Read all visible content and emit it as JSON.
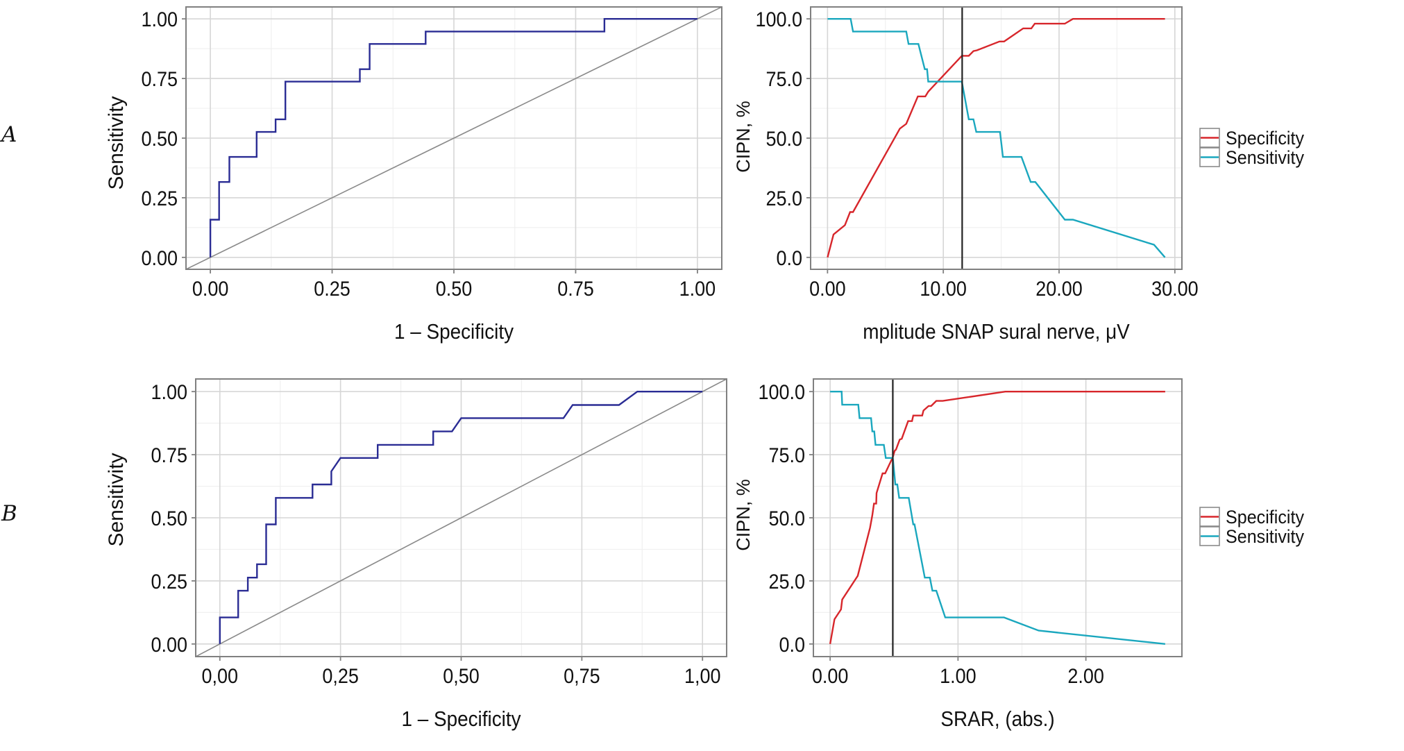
{
  "figure": {
    "panels": [
      {
        "label": "A"
      },
      {
        "label": "B"
      }
    ]
  },
  "colors": {
    "roc": "#2a2c94",
    "diagonal": "#8a8a8a",
    "specificity": "#d7262b",
    "sensitivity": "#1aa7be",
    "cutoff": "#222222",
    "grid_major": "#d6d6d6",
    "grid_minor": "#f0f0f0",
    "border": "#808080",
    "legend_box": "#8a8a8a"
  },
  "chart_data": [
    {
      "id": "A-roc",
      "panel": "A",
      "type": "line",
      "title": "",
      "xlabel": "1 – Specificity",
      "ylabel": "Sensitivity",
      "xlim": [
        -0.05,
        1.05
      ],
      "ylim": [
        -0.05,
        1.05
      ],
      "xticks": [
        0,
        0.25,
        0.5,
        0.75,
        1
      ],
      "xtick_labels": [
        "0.00",
        "0.25",
        "0.50",
        "0.75",
        "1.00"
      ],
      "yticks": [
        0,
        0.25,
        0.5,
        0.75,
        1
      ],
      "ytick_labels": [
        "0.00",
        "0.25",
        "0.50",
        "0.75",
        "1.00"
      ],
      "grid": true,
      "legend": [],
      "series": [
        {
          "name": "reference",
          "color_key": "diagonal",
          "x": [
            -0.05,
            1.05
          ],
          "y": [
            -0.05,
            1.05
          ]
        },
        {
          "name": "ROC",
          "color_key": "roc",
          "x": [
            0,
            0,
            0.018,
            0.018,
            0.039,
            0.039,
            0.095,
            0.095,
            0.134,
            0.134,
            0.154,
            0.154,
            0.307,
            0.307,
            0.327,
            0.327,
            0.442,
            0.442,
            0.809,
            0.809,
            1
          ],
          "y": [
            0,
            0.158,
            0.158,
            0.316,
            0.316,
            0.421,
            0.421,
            0.526,
            0.526,
            0.579,
            0.579,
            0.737,
            0.737,
            0.789,
            0.789,
            0.895,
            0.895,
            0.947,
            0.947,
            1,
            1
          ]
        }
      ]
    },
    {
      "id": "A-cut",
      "panel": "A",
      "type": "line",
      "title": "",
      "xlabel": "mplitude SNAP sural nerve, μV",
      "ylabel": "CIPN, %",
      "xlim": [
        -1.46,
        30.61
      ],
      "ylim": [
        -5,
        105
      ],
      "xticks": [
        0,
        10,
        20,
        30
      ],
      "xtick_labels": [
        "0.00",
        "10.00",
        "20.00",
        "30.00"
      ],
      "yticks": [
        0,
        25,
        50,
        75,
        100
      ],
      "ytick_labels": [
        "0.0",
        "25.0",
        "50.0",
        "75.0",
        "100.0"
      ],
      "grid": true,
      "legend": [
        "Specificity",
        "Sensitivity"
      ],
      "legend_position": "right",
      "cutoff": 11.63,
      "series": [
        {
          "name": "Specificity",
          "color_key": "specificity",
          "x": [
            0,
            0.52,
            1.5,
            1.95,
            2.2,
            6.25,
            6.8,
            7.8,
            8.45,
            8.7,
            11.6,
            12.2,
            12.6,
            12.9,
            14.85,
            15.25,
            16.9,
            17.6,
            17.9,
            20.5,
            21.2,
            29.15
          ],
          "y": [
            0,
            9.6,
            13.5,
            19,
            19,
            54,
            56,
            67.5,
            67.5,
            69.5,
            84.5,
            84.5,
            86.5,
            86.8,
            90.5,
            90.5,
            96,
            96,
            98,
            98,
            100,
            100
          ]
        },
        {
          "name": "Sensitivity",
          "color_key": "sensitivity",
          "x": [
            0,
            2,
            2.2,
            6.8,
            7.0,
            7.85,
            8.4,
            8.6,
            8.7,
            11.6,
            12.2,
            12.6,
            12.85,
            14.9,
            15.15,
            16.75,
            17.55,
            17.95,
            20.5,
            21.2,
            28.2,
            29.15
          ],
          "y": [
            100,
            100,
            94.7,
            94.7,
            89.5,
            89.5,
            78.9,
            78.9,
            73.7,
            73.7,
            57.9,
            57.9,
            52.6,
            52.6,
            42.1,
            42.1,
            31.6,
            31.6,
            15.8,
            15.8,
            5.3,
            0
          ]
        }
      ]
    },
    {
      "id": "B-roc",
      "panel": "B",
      "type": "line",
      "title": "",
      "xlabel": "1 – Specificity",
      "ylabel": "Sensitivity",
      "xlim": [
        -0.05,
        1.05
      ],
      "ylim": [
        -0.05,
        1.05
      ],
      "xticks": [
        0,
        0.25,
        0.5,
        0.75,
        1
      ],
      "xtick_labels": [
        "0,00",
        "0,25",
        "0,50",
        "0,75",
        "1,00"
      ],
      "yticks": [
        0,
        0.25,
        0.5,
        0.75,
        1
      ],
      "ytick_labels": [
        "0.00",
        "0.25",
        "0.50",
        "0.75",
        "1.00"
      ],
      "grid": true,
      "legend": [],
      "series": [
        {
          "name": "reference",
          "color_key": "diagonal",
          "x": [
            -0.05,
            1.05
          ],
          "y": [
            -0.05,
            1.05
          ]
        },
        {
          "name": "ROC",
          "color_key": "roc",
          "x": [
            0,
            0,
            0.038,
            0.038,
            0.058,
            0.058,
            0.077,
            0.077,
            0.096,
            0.096,
            0.116,
            0.116,
            0.192,
            0.192,
            0.231,
            0.231,
            0.25,
            0.327,
            0.327,
            0.442,
            0.442,
            0.481,
            0.5,
            0.712,
            0.731,
            0.827,
            0.865,
            1
          ],
          "y": [
            0,
            0.105,
            0.105,
            0.211,
            0.211,
            0.263,
            0.263,
            0.316,
            0.316,
            0.474,
            0.474,
            0.579,
            0.579,
            0.632,
            0.632,
            0.684,
            0.737,
            0.737,
            0.789,
            0.789,
            0.842,
            0.842,
            0.895,
            0.895,
            0.947,
            0.947,
            1,
            1
          ]
        }
      ]
    },
    {
      "id": "B-cut",
      "panel": "B",
      "type": "line",
      "title": "",
      "xlabel": "SRAR, (abs.)",
      "ylabel": "CIPN, %",
      "xlim": [
        -0.131,
        2.751
      ],
      "ylim": [
        -5,
        105
      ],
      "xticks": [
        0,
        1,
        2
      ],
      "xtick_labels": [
        "0.00",
        "1.00",
        "2.00"
      ],
      "yticks": [
        0,
        25,
        50,
        75,
        100
      ],
      "ytick_labels": [
        "0.0",
        "25.0",
        "50.0",
        "75.0",
        "100.0"
      ],
      "grid": true,
      "legend": [
        "Specificity",
        "Sensitivity"
      ],
      "legend_position": "right",
      "cutoff": 0.49,
      "series": [
        {
          "name": "Specificity",
          "color_key": "specificity",
          "x": [
            0,
            0.034,
            0.085,
            0.094,
            0.216,
            0.312,
            0.33,
            0.343,
            0.36,
            0.363,
            0.41,
            0.43,
            0.49,
            0.505,
            0.515,
            0.544,
            0.56,
            0.61,
            0.64,
            0.65,
            0.72,
            0.73,
            0.77,
            0.79,
            0.83,
            0.88,
            1.37,
            2.62
          ],
          "y": [
            0,
            9.8,
            13.7,
            17.6,
            27,
            46,
            51,
            55.6,
            55.6,
            59.8,
            67.6,
            67.6,
            74,
            76.6,
            77,
            81,
            81.3,
            88.3,
            88.3,
            90.5,
            90.5,
            92.5,
            94.3,
            94.3,
            96.3,
            96.3,
            100,
            100
          ]
        },
        {
          "name": "Sensitivity",
          "color_key": "sensitivity",
          "x": [
            0,
            0.09,
            0.094,
            0.22,
            0.23,
            0.32,
            0.33,
            0.345,
            0.355,
            0.42,
            0.435,
            0.49,
            0.51,
            0.525,
            0.54,
            0.615,
            0.65,
            0.66,
            0.72,
            0.74,
            0.78,
            0.8,
            0.83,
            0.9,
            1.36,
            1.63,
            2.62
          ],
          "y": [
            100,
            100,
            94.8,
            94.8,
            89.5,
            89.5,
            84.2,
            84.2,
            78.9,
            78.9,
            73.7,
            73.7,
            63.2,
            63.2,
            57.9,
            57.9,
            47.4,
            47.4,
            31.6,
            26.3,
            26.3,
            21.1,
            21.1,
            10.5,
            10.5,
            5.3,
            0
          ]
        }
      ]
    }
  ]
}
